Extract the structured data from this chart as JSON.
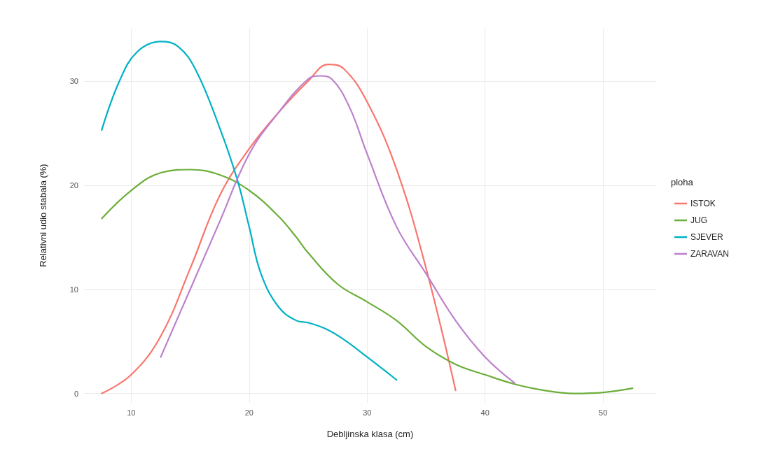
{
  "chart_data": {
    "type": "line",
    "xlabel": "Debljinska klasa (cm)",
    "ylabel": "Relativni udio stabala (%)",
    "legend_title": "ploha",
    "xlim": [
      6,
      54.5
    ],
    "ylim": [
      -0.9,
      35.1
    ],
    "xticks": [
      10,
      20,
      30,
      40,
      50
    ],
    "yticks": [
      0,
      10,
      20,
      30
    ],
    "grid": true,
    "legend": "right",
    "marker": "none",
    "line_style": "solid",
    "series": [
      {
        "name": "ISTOK",
        "color": "#f8766d",
        "x": [
          7.5,
          10,
          12.5,
          15,
          17.5,
          20,
          22.5,
          25,
          26.7,
          28,
          30,
          32.5,
          35,
          37.5
        ],
        "values": [
          0,
          1.8,
          5.5,
          12,
          19,
          23.5,
          27,
          30,
          31.6,
          31.2,
          28,
          21.5,
          12,
          0.3
        ]
      },
      {
        "name": "JUG",
        "color": "#6cae3a",
        "x": [
          7.5,
          10,
          12.5,
          15,
          17.5,
          20,
          22.5,
          24,
          25,
          27.5,
          30,
          32.5,
          35,
          37.5,
          40,
          42.5,
          45,
          47.5,
          50,
          52.5
        ],
        "values": [
          16.8,
          19.5,
          21.2,
          21.5,
          21,
          19.5,
          17,
          15,
          13.5,
          10.5,
          8.8,
          7,
          4.5,
          2.8,
          1.8,
          0.9,
          0.3,
          0,
          0.1,
          0.5
        ]
      },
      {
        "name": "SJEVER",
        "color": "#00b2c4",
        "x": [
          7.5,
          9,
          10.5,
          12.5,
          14,
          15.5,
          17.5,
          19,
          20,
          21,
          22.5,
          24,
          25,
          26.5,
          28,
          30,
          32.5
        ],
        "values": [
          25.3,
          30,
          32.8,
          33.8,
          33.3,
          31,
          25.5,
          20.5,
          16,
          11.5,
          8.3,
          7,
          6.8,
          6.2,
          5.2,
          3.5,
          1.3
        ]
      },
      {
        "name": "ZARAVAN",
        "color": "#bd80cd",
        "x": [
          12.5,
          15,
          17.5,
          20,
          22.5,
          25,
          26,
          27,
          28.5,
          30,
          32.5,
          35,
          37.5,
          40,
          42.5
        ],
        "values": [
          3.5,
          10,
          16.5,
          23,
          27,
          30.2,
          30.5,
          30.2,
          27.5,
          23,
          16,
          11.5,
          7,
          3.5,
          1
        ]
      }
    ]
  }
}
